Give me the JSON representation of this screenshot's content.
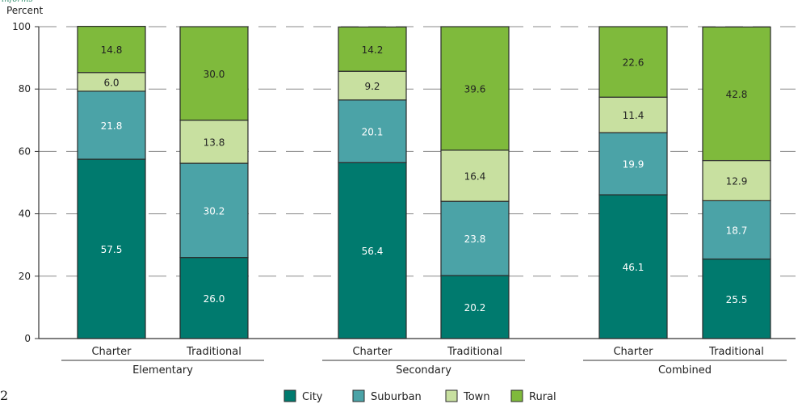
{
  "top_stub": "informs",
  "corner_label": "2",
  "chart_data": {
    "type": "bar",
    "stacked": true,
    "ylabel": "Percent",
    "ylim": [
      0,
      100
    ],
    "yticks": [
      0,
      20,
      40,
      60,
      80,
      100
    ],
    "grid": "dashed horizontal",
    "legend_position": "bottom",
    "groups": [
      {
        "name": "Elementary",
        "bars": [
          {
            "label": "Charter",
            "values": [
              57.5,
              21.8,
              6.0,
              14.8
            ]
          },
          {
            "label": "Traditional",
            "values": [
              26.0,
              30.2,
              13.8,
              30.0
            ]
          }
        ]
      },
      {
        "name": "Secondary",
        "bars": [
          {
            "label": "Charter",
            "values": [
              56.4,
              20.1,
              9.2,
              14.2
            ]
          },
          {
            "label": "Traditional",
            "values": [
              20.2,
              23.8,
              16.4,
              39.6
            ]
          }
        ]
      },
      {
        "name": "Combined",
        "bars": [
          {
            "label": "Charter",
            "values": [
              46.1,
              19.9,
              11.4,
              22.6
            ]
          },
          {
            "label": "Traditional",
            "values": [
              25.5,
              18.7,
              12.9,
              42.8
            ]
          }
        ]
      }
    ],
    "series": [
      {
        "name": "City",
        "color": "#007a6e",
        "label_color": "#ffffff"
      },
      {
        "name": "Suburban",
        "color": "#4ba3a7",
        "label_color": "#ffffff"
      },
      {
        "name": "Town",
        "color": "#c8e0a0",
        "label_color": "#222222"
      },
      {
        "name": "Rural",
        "color": "#7fba3c",
        "label_color": "#222222"
      }
    ]
  }
}
